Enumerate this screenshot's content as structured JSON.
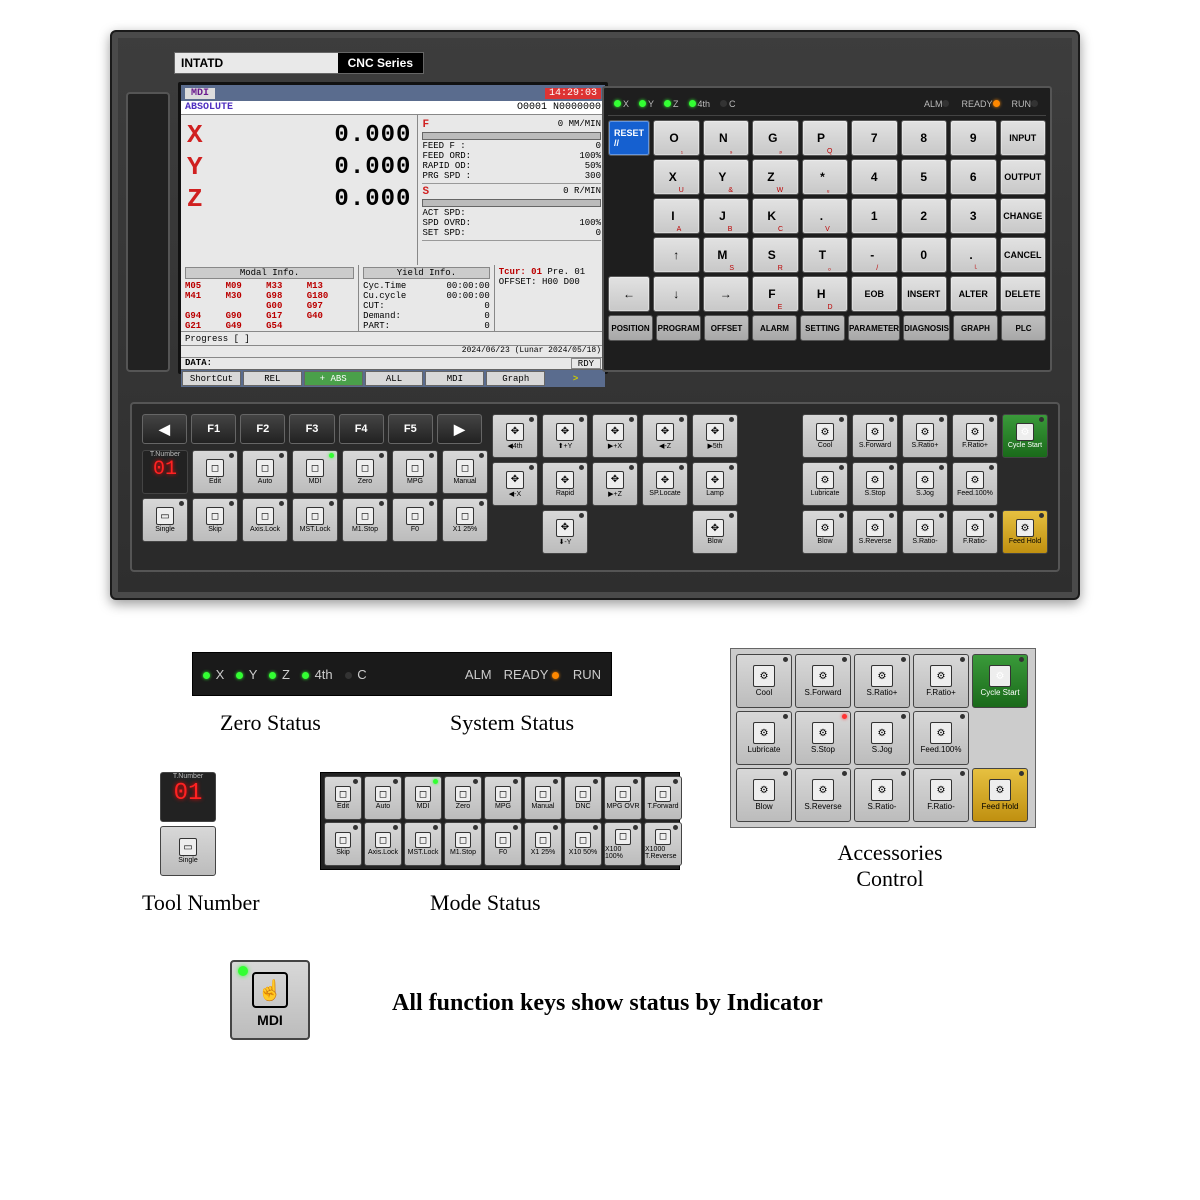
{
  "brand": {
    "name": "INTATD",
    "series": "CNC Series"
  },
  "lcd": {
    "mode": "MDI",
    "clock": "14:29:03",
    "abs_label": "ABSOLUTE",
    "prog_o": "O0001",
    "prog_n": "N0000000",
    "axes": [
      {
        "n": "X",
        "v": "0.000"
      },
      {
        "n": "Y",
        "v": "0.000"
      },
      {
        "n": "Z",
        "v": "0.000"
      }
    ],
    "feed": {
      "hdr": "F",
      "unit": "0 MM/MIN",
      "rows": [
        {
          "l": "FEED F :",
          "v": "0"
        },
        {
          "l": "FEED ORD:",
          "v": "100%"
        },
        {
          "l": "RAPID OD:",
          "v": "50%"
        },
        {
          "l": "PRG SPD :",
          "v": "300"
        }
      ]
    },
    "spd": {
      "hdr": "S",
      "unit": "0 R/MIN",
      "rows": [
        {
          "l": "ACT SPD:",
          "v": ""
        },
        {
          "l": "SPD OVRD:",
          "v": "100%"
        },
        {
          "l": "SET SPD:",
          "v": "0"
        }
      ]
    },
    "modal": {
      "t": "Modal Info.",
      "g": [
        "M05",
        "M09",
        "M33",
        "M13",
        "M41",
        "M30",
        "G98",
        "G180",
        "",
        "",
        "G00",
        "G97",
        "G94",
        "G90",
        "G17",
        "G40",
        "G21",
        "G49",
        "G54",
        ""
      ]
    },
    "yield": {
      "t": "Yield Info.",
      "rows": [
        {
          "l": "Cyc.Time",
          "v": "00:00:00"
        },
        {
          "l": "Cu.cycle",
          "v": "00:00:00"
        },
        {
          "l": "CUT:",
          "v": "0"
        },
        {
          "l": "Demand:",
          "v": "0"
        },
        {
          "l": "PART:",
          "v": "0"
        }
      ]
    },
    "tool": {
      "t_cur": "Tcur:",
      "cur": "01",
      "t_pre": "Pre.",
      "pre": "01",
      "off": "OFFSET:",
      "h": "H00",
      "d": "D00"
    },
    "progress": "Progress [                    ]",
    "datestr": "2024/06/23 (Lunar 2024/05/18)",
    "datal": "DATA:",
    "rdy": "RDY",
    "softkeys": [
      "ShortCut",
      "REL",
      "+ ABS",
      "ALL",
      "MDI",
      "Graph",
      ">"
    ]
  },
  "leds": {
    "axes": [
      "X",
      "Y",
      "Z",
      "4th",
      "C"
    ],
    "status": [
      "ALM",
      "READY",
      "RUN"
    ]
  },
  "alpha": {
    "reset": "RESET\n//",
    "r1": [
      [
        "O",
        "₁"
      ],
      [
        "N",
        "₉"
      ],
      [
        "G",
        "ₚ"
      ],
      [
        "P",
        "Q"
      ],
      [
        "7",
        ""
      ],
      [
        "8",
        ""
      ],
      [
        "9",
        ""
      ],
      [
        "INPUT",
        ""
      ]
    ],
    "r2": [
      [
        "X",
        "U"
      ],
      [
        "Y",
        "&"
      ],
      [
        "Z",
        "W"
      ],
      [
        "*",
        "ᵤ"
      ],
      [
        "4",
        ""
      ],
      [
        "5",
        ""
      ],
      [
        "6",
        ""
      ],
      [
        "OUTPUT",
        ""
      ]
    ],
    "r3": [
      [
        "I",
        "A"
      ],
      [
        "J",
        "B"
      ],
      [
        "K",
        "C"
      ],
      [
        ".",
        "V"
      ],
      [
        "1",
        ""
      ],
      [
        "2",
        ""
      ],
      [
        "3",
        ""
      ],
      [
        "CHANGE",
        ""
      ]
    ],
    "r4": [
      [
        "↑",
        ""
      ],
      [
        "M",
        "S"
      ],
      [
        "S",
        "R"
      ],
      [
        "T",
        "ₒ"
      ],
      [
        "-",
        "/"
      ],
      [
        "0",
        ""
      ],
      [
        ".",
        "ᴸ"
      ],
      [
        "CANCEL",
        ""
      ]
    ],
    "r5": [
      [
        "←",
        ""
      ],
      [
        "↓",
        ""
      ],
      [
        "→",
        ""
      ],
      [
        "F",
        "E"
      ],
      [
        "H",
        "D"
      ],
      [
        "EOB",
        ""
      ],
      [
        "INSERT",
        ""
      ],
      [
        "ALTER",
        ""
      ],
      [
        "DELETE",
        ""
      ]
    ],
    "bottom": [
      "POSITION",
      "PROGRAM",
      "OFFSET",
      "ALARM",
      "SETTING",
      "PARAMETER",
      "DIAGNOSIS",
      "GRAPH",
      "PLC"
    ]
  },
  "fkeys": [
    "◀",
    "F1",
    "F2",
    "F3",
    "F4",
    "F5",
    "▶"
  ],
  "toolnum": {
    "lbl": "T.Number",
    "val": "01",
    "single": "Single"
  },
  "mode_row1": [
    "Edit",
    "Auto",
    "MDI",
    "Zero",
    "MPG",
    "Manual",
    "DNC",
    "MPG OVR",
    "T.Forward"
  ],
  "mode_row2": [
    "Skip",
    "Axis.Lock",
    "MST.Lock",
    "M1.Stop",
    "F0",
    "X1 25%",
    "X10 50%",
    "X100 100%",
    "X1000 T.Reverse"
  ],
  "jog": [
    "◀4th",
    "⬆+Y",
    "▶+X",
    "◀-Z",
    "▶5th",
    "◀-X",
    "Rapid",
    "▶+Z",
    "SP.Locate",
    "Lamp",
    "",
    "⬇-Y",
    "",
    "",
    "Blow"
  ],
  "acc_row1": [
    "Cool",
    "S.Forward",
    "S.Ratio+",
    "F.Ratio+",
    "Cycle Start"
  ],
  "acc_row2": [
    "Lubricate",
    "S.Stop",
    "S.Jog",
    "Feed.100%",
    ""
  ],
  "acc_row3": [
    "Blow",
    "S.Reverse",
    "S.Ratio-",
    "F.Ratio-",
    "Feed Hold"
  ],
  "captions": {
    "zero": "Zero Status",
    "sys": "System Status",
    "tool": "Tool Number",
    "mode": "Mode Status",
    "acc": "Accessories\nControl",
    "big": "All function keys show status by Indicator",
    "mdi": "MDI"
  }
}
